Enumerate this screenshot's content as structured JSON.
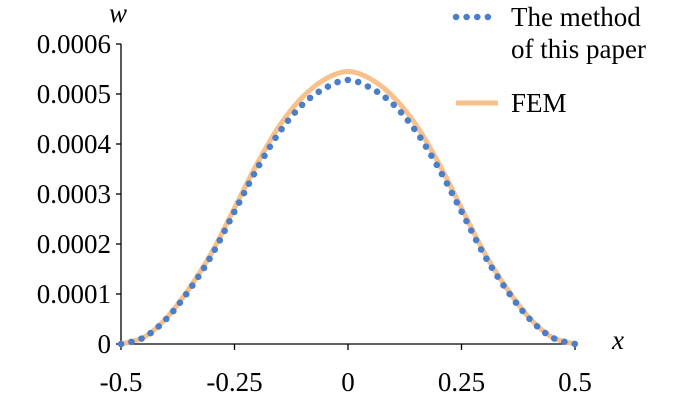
{
  "chart_data": {
    "type": "line",
    "xlabel": "x",
    "ylabel": "w",
    "xlim": [
      -0.5,
      0.5
    ],
    "ylim": [
      0,
      0.0006
    ],
    "grid": false,
    "legend_position": "top-right",
    "x_ticks": [
      {
        "value": -0.5,
        "label": "-0.5"
      },
      {
        "value": -0.25,
        "label": "-0.25"
      },
      {
        "value": 0,
        "label": "0"
      },
      {
        "value": 0.25,
        "label": "0.25"
      },
      {
        "value": 0.5,
        "label": "0.5"
      }
    ],
    "y_ticks": [
      {
        "value": 0,
        "label": "0"
      },
      {
        "value": 0.0001,
        "label": "0.0001"
      },
      {
        "value": 0.0002,
        "label": "0.0002"
      },
      {
        "value": 0.0003,
        "label": "0.0003"
      },
      {
        "value": 0.0004,
        "label": "0.0004"
      },
      {
        "value": 0.0005,
        "label": "0.0005"
      },
      {
        "value": 0.0006,
        "label": "0.0006"
      }
    ],
    "series": [
      {
        "name": "The method of this paper",
        "legend_lines": [
          "The method",
          "of this paper"
        ],
        "style": "dotted",
        "color": "#4a7ec9",
        "x": [
          -0.5,
          -0.45,
          -0.4,
          -0.35,
          -0.3,
          -0.25,
          -0.2,
          -0.15,
          -0.1,
          -0.05,
          0,
          0.05,
          0.1,
          0.15,
          0.2,
          0.25,
          0.3,
          0.35,
          0.4,
          0.45,
          0.5
        ],
        "y": [
          0,
          1.29e-05,
          5.02e-05,
          0.0001075,
          0.000178,
          0.000265,
          0.000351,
          0.000425,
          0.000479,
          0.000512,
          0.000528,
          0.000512,
          0.000479,
          0.000425,
          0.000351,
          0.000265,
          0.000178,
          0.0001075,
          5.02e-05,
          1.29e-05,
          0
        ]
      },
      {
        "name": "FEM",
        "legend_lines": [
          "FEM"
        ],
        "style": "solid",
        "color": "#f8c08a",
        "x": [
          -0.5,
          -0.45,
          -0.4,
          -0.35,
          -0.3,
          -0.25,
          -0.2,
          -0.15,
          -0.1,
          -0.05,
          0,
          0.05,
          0.1,
          0.15,
          0.2,
          0.25,
          0.3,
          0.35,
          0.4,
          0.45,
          0.5
        ],
        "y": [
          0,
          1.33e-05,
          5.19e-05,
          0.0001109,
          0.000183,
          0.000272,
          0.000361,
          0.000438,
          0.000494,
          0.00053,
          0.000545,
          0.00053,
          0.000494,
          0.000438,
          0.000361,
          0.000272,
          0.000183,
          0.0001109,
          5.19e-05,
          1.33e-05,
          0
        ]
      }
    ]
  }
}
